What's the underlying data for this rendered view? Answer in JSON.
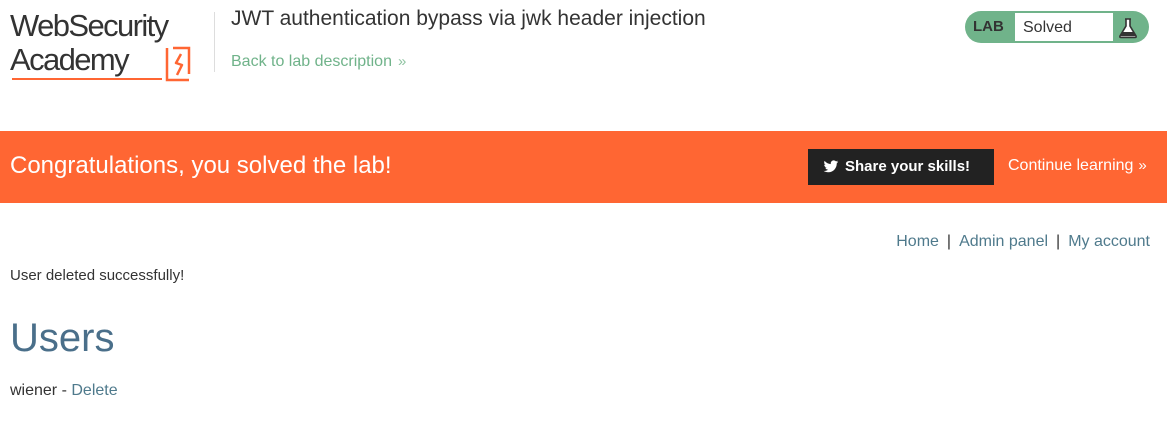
{
  "logo": {
    "line1": "WebSecurity",
    "line2": "Academy"
  },
  "lab": {
    "title": "JWT authentication bypass via jwk header injection",
    "back_link": "Back to lab description",
    "status_label": "LAB",
    "status_value": "Solved"
  },
  "banner": {
    "message": "Congratulations, you solved the lab!",
    "share_label": "Share your skills!",
    "continue_label": "Continue learning"
  },
  "nav": {
    "home": "Home",
    "separator": "|",
    "admin_panel": "Admin panel",
    "my_account": "My account"
  },
  "main": {
    "message": "User deleted successfully!",
    "heading": "Users",
    "users": [
      {
        "name": "wiener",
        "separator": "-",
        "action": "Delete"
      }
    ]
  },
  "colors": {
    "accent_orange": "#ff6633",
    "lab_green": "#70b38a",
    "link_teal": "#4f7a8c",
    "heading_blue": "#4a6f8a"
  },
  "icons": {
    "logo_mark": "flask-bolt-icon",
    "status": "flask-icon",
    "share": "twitter-icon",
    "chevron": "double-chevron-right-icon"
  }
}
